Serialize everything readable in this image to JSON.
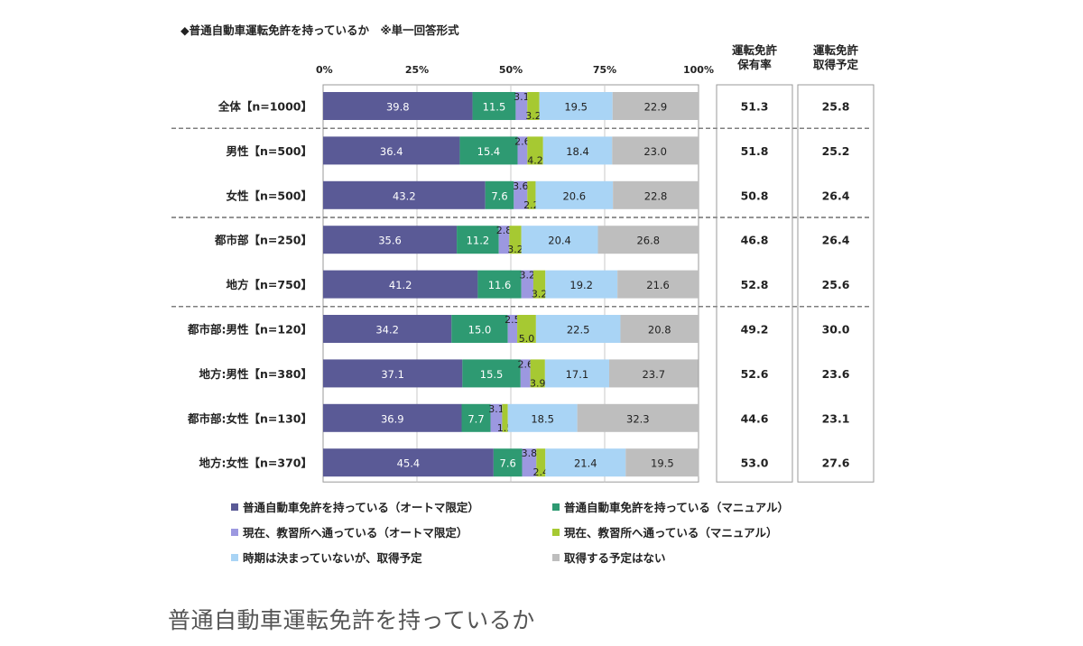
{
  "caption": "普通自動車運転免許を持っているか",
  "chart_data": {
    "type": "bar",
    "orientation": "horizontal",
    "stacked": true,
    "percent": true,
    "title": "◆普通自動車運転免許を持っているか　※単一回答形式",
    "xlim": [
      0,
      100
    ],
    "x_ticks": [
      "0%",
      "25%",
      "50%",
      "75%",
      "100%"
    ],
    "categories": [
      "全体【n=1000】",
      "男性【n=500】",
      "女性【n=500】",
      "都市部【n=250】",
      "地方【n=750】",
      "都市部:男性【n=120】",
      "地方:男性【n=380】",
      "都市部:女性【n=130】",
      "地方:女性【n=370】"
    ],
    "series": [
      {
        "name": "普通自動車免許を持っている（オートマ限定）",
        "color": "#5a5a96",
        "label_color": "#ffffff",
        "values": [
          39.8,
          36.4,
          43.2,
          35.6,
          41.2,
          34.2,
          37.1,
          36.9,
          45.4
        ]
      },
      {
        "name": "普通自動車免許を持っている（マニュアル）",
        "color": "#2e9a72",
        "label_color": "#ffffff",
        "values": [
          11.5,
          15.4,
          7.6,
          11.2,
          11.6,
          15.0,
          15.5,
          7.7,
          7.6
        ]
      },
      {
        "name": "現在、教習所へ通っている（オートマ限定）",
        "color": "#9c98e0",
        "label_color": "#222222",
        "values": [
          3.1,
          2.6,
          3.6,
          2.8,
          3.2,
          2.5,
          2.6,
          3.1,
          3.8
        ]
      },
      {
        "name": "現在、教習所へ通っている（マニュアル）",
        "color": "#a6c932",
        "label_color": "#222222",
        "values": [
          3.2,
          4.2,
          2.2,
          3.2,
          3.2,
          5.0,
          3.9,
          1.5,
          2.4
        ]
      },
      {
        "name": "時期は決まっていないが、取得予定",
        "color": "#a9d4f5",
        "label_color": "#222222",
        "values": [
          19.5,
          18.4,
          20.6,
          20.4,
          19.2,
          22.5,
          17.1,
          18.5,
          21.4
        ]
      },
      {
        "name": "取得する予定はない",
        "color": "#bebebe",
        "label_color": "#222222",
        "values": [
          22.9,
          23.0,
          22.8,
          26.8,
          21.6,
          20.8,
          23.7,
          32.3,
          19.5
        ]
      }
    ],
    "side_table": {
      "headers": [
        [
          "運転免許",
          "保有率"
        ],
        [
          "運転免許",
          "取得予定"
        ]
      ],
      "columns": [
        [
          "51.3",
          "51.8",
          "50.8",
          "46.8",
          "52.8",
          "49.2",
          "52.6",
          "44.6",
          "53.0"
        ],
        [
          "25.8",
          "25.2",
          "26.4",
          "26.4",
          "25.6",
          "30.0",
          "23.6",
          "23.1",
          "27.6"
        ]
      ]
    },
    "group_separators_after": [
      0,
      2,
      4
    ],
    "legend_position": "bottom",
    "grid": true
  }
}
